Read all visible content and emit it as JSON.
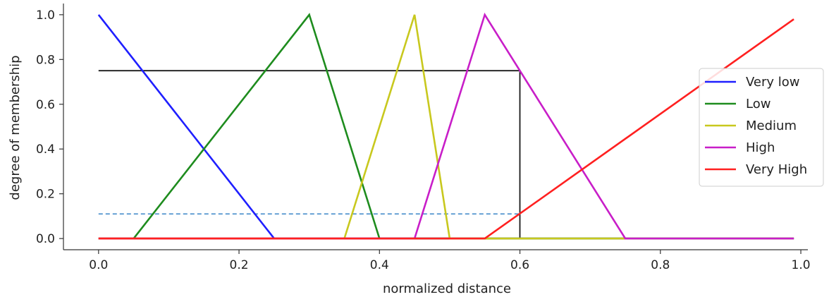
{
  "chart_data": {
    "type": "line",
    "xlabel": "normalized distance",
    "ylabel": "degree of membership",
    "xlim": [
      -0.05,
      1.01
    ],
    "ylim": [
      -0.05,
      1.05
    ],
    "x_ticks": [
      0.0,
      0.2,
      0.4,
      0.6,
      0.8,
      1.0
    ],
    "x_tick_labels": [
      "0.0",
      "0.2",
      "0.4",
      "0.6",
      "0.8",
      "1.0"
    ],
    "y_ticks": [
      0.0,
      0.2,
      0.4,
      0.6,
      0.8,
      1.0
    ],
    "y_tick_labels": [
      "0.0",
      "0.2",
      "0.4",
      "0.6",
      "0.8",
      "1.0"
    ],
    "grid": false,
    "legend_position": "center-right",
    "series": [
      {
        "name": "Very low",
        "color": "#1f1fff",
        "x": [
          0.0,
          0.25,
          0.99
        ],
        "y": [
          1.0,
          0.0,
          0.0
        ]
      },
      {
        "name": "Low",
        "color": "#1e8c1e",
        "x": [
          0.0,
          0.05,
          0.3,
          0.4,
          0.99
        ],
        "y": [
          0.0,
          0.0,
          1.0,
          0.0,
          0.0
        ]
      },
      {
        "name": "Medium",
        "color": "#c8c81e",
        "x": [
          0.0,
          0.35,
          0.45,
          0.5,
          0.99
        ],
        "y": [
          0.0,
          0.0,
          1.0,
          0.0,
          0.0
        ]
      },
      {
        "name": "High",
        "color": "#c81ec8",
        "x": [
          0.0,
          0.45,
          0.55,
          0.75,
          0.99
        ],
        "y": [
          0.0,
          0.0,
          1.0,
          0.0,
          0.0
        ]
      },
      {
        "name": "Very High",
        "color": "#ff2020",
        "x": [
          0.0,
          0.55,
          0.99
        ],
        "y": [
          0.0,
          0.0,
          0.98
        ]
      }
    ],
    "annotations": [
      {
        "kind": "solid",
        "color": "#1a1a1a",
        "x": [
          0.0,
          0.6,
          0.6
        ],
        "y": [
          0.75,
          0.75,
          0.0
        ]
      },
      {
        "kind": "dashed",
        "color": "#3a86c8",
        "x": [
          0.0,
          0.6
        ],
        "y": [
          0.11,
          0.11
        ]
      }
    ]
  }
}
